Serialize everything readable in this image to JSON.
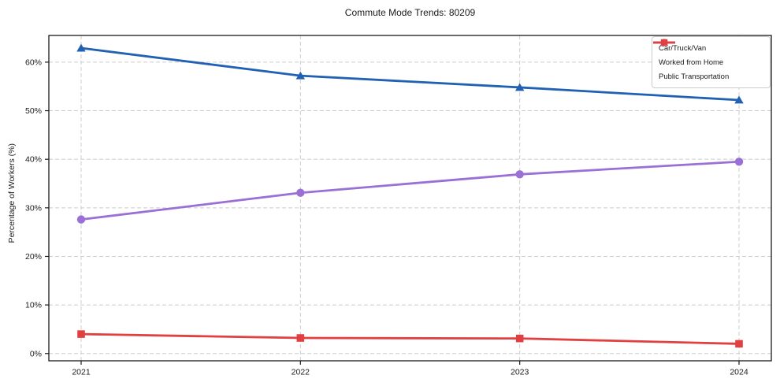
{
  "page": {
    "background": "#ffffff"
  },
  "chart_data": {
    "type": "line",
    "title": "Commute Mode Trends: 80209",
    "xlabel": "",
    "ylabel": "Percentage of Workers (%)",
    "x_tick_labels": [
      "2021",
      "2022",
      "2023",
      "2024"
    ],
    "y_ticks": [
      0,
      10,
      20,
      30,
      40,
      50,
      60
    ],
    "y_tick_labels": [
      "0%",
      "10%",
      "20%",
      "30%",
      "40%",
      "50%",
      "60%"
    ],
    "ylim": [
      -1.5,
      65.5
    ],
    "grid": true,
    "grid_style": "dashed",
    "grid_color": "#cccccc",
    "axis_color": "#1a1a1a",
    "legend_position": "upper right",
    "series": [
      {
        "name": "Car/Truck/Van",
        "marker": "triangle",
        "color": "#2161b3",
        "values": [
          62.9,
          57.2,
          54.8,
          52.2
        ]
      },
      {
        "name": "Worked from Home",
        "marker": "circle",
        "color": "#9a70d6",
        "values": [
          27.6,
          33.1,
          36.9,
          39.5
        ]
      },
      {
        "name": "Public Transportation",
        "marker": "square",
        "color": "#e04040",
        "values": [
          4.0,
          3.2,
          3.1,
          2.0
        ]
      }
    ]
  }
}
